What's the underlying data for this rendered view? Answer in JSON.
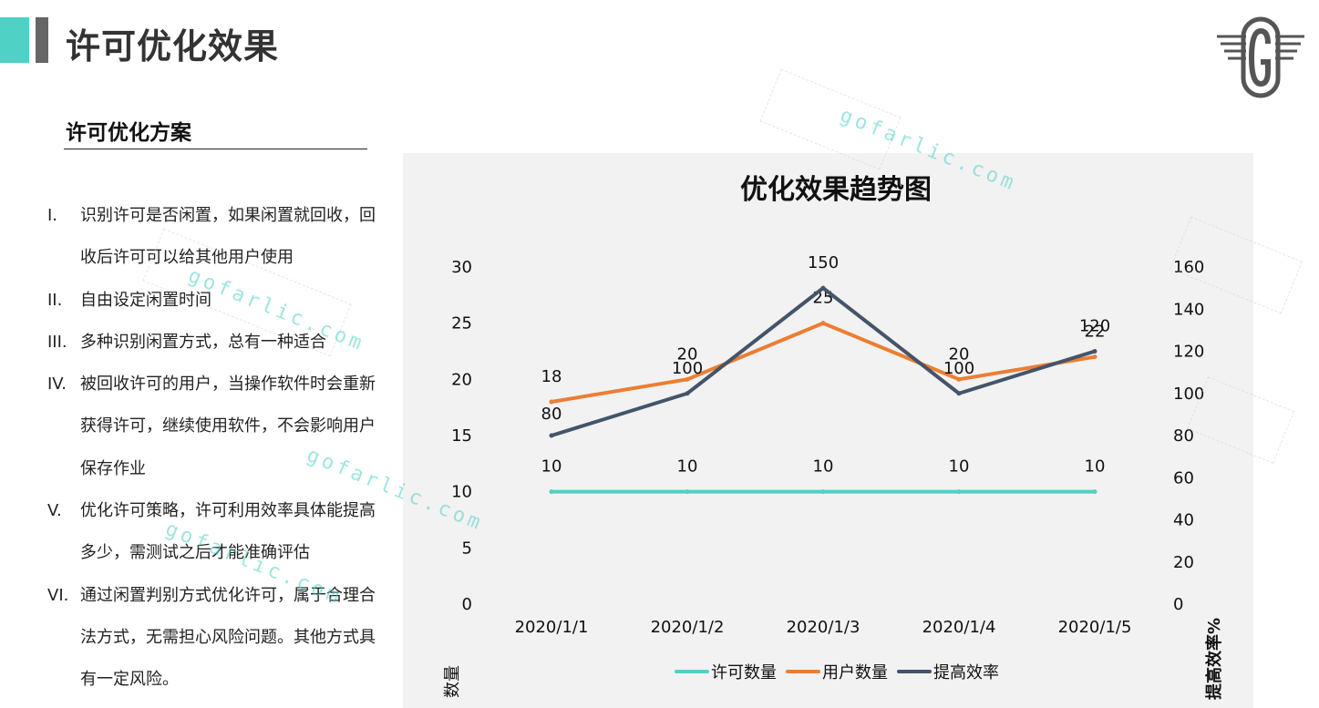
{
  "header": {
    "title": "许可优化效果"
  },
  "section": {
    "title": "许可优化方案",
    "items": [
      {
        "num": "I.",
        "text": "识别许可是否闲置，如果闲置就回收，回收后许可可以给其他用户使用"
      },
      {
        "num": "II.",
        "text": "自由设定闲置时间"
      },
      {
        "num": "III.",
        "text": "多种识别闲置方式，总有一种适合"
      },
      {
        "num": "IV.",
        "text": "被回收许可的用户，当操作软件时会重新获得许可，继续使用软件，不会影响用户保存作业"
      },
      {
        "num": "V.",
        "text": "优化许可策略，许可利用效率具体能提高多少，需测试之后才能准确评估"
      },
      {
        "num": "VI.",
        "text": "通过闲置判别方式优化许可，属于合理合法方式，无需担心风险问题。其他方式具有一定风险。"
      }
    ]
  },
  "watermarks": [
    "gofarlic.com",
    "gofarlic.com",
    "gofarlic.com",
    "gofarlic.com",
    "gofarlic.com"
  ],
  "colors": {
    "teal": "#4fd1c5",
    "orange": "#ed7d31",
    "navy": "#44546a"
  },
  "chart_data": {
    "type": "line",
    "title": "优化效果趋势图",
    "categories": [
      "2020/1/1",
      "2020/1/2",
      "2020/1/3",
      "2020/1/4",
      "2020/1/5"
    ],
    "y_left": {
      "label": "数量",
      "ticks": [
        "0",
        "5",
        "10",
        "15",
        "20",
        "25",
        "30"
      ],
      "lim": [
        0,
        30
      ]
    },
    "y_right": {
      "label": "提高效率%",
      "ticks": [
        "0",
        "20",
        "40",
        "60",
        "80",
        "100",
        "120",
        "140",
        "160"
      ],
      "lim": [
        0,
        160
      ]
    },
    "series": [
      {
        "name": "许可数量",
        "axis": "left",
        "color": "#4fd1c5",
        "values": [
          10,
          10,
          10,
          10,
          10
        ],
        "labels": [
          "10",
          "10",
          "10",
          "10",
          "10"
        ]
      },
      {
        "name": "用户数量",
        "axis": "left",
        "color": "#ed7d31",
        "values": [
          18,
          20,
          25,
          20,
          22
        ],
        "labels": [
          "18",
          "20",
          "25",
          "20",
          "22"
        ]
      },
      {
        "name": "提高效率",
        "axis": "right",
        "color": "#44546a",
        "values": [
          80,
          100,
          150,
          100,
          120
        ],
        "labels": [
          "80",
          "100",
          "150",
          "100",
          "120"
        ]
      }
    ],
    "legend": "bottom",
    "grid": false
  }
}
